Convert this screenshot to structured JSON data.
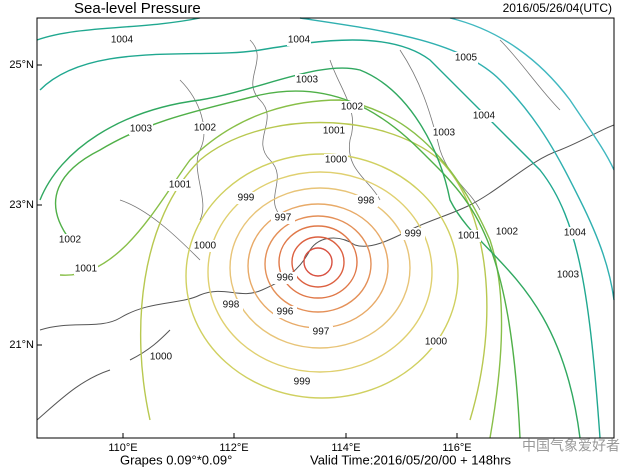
{
  "header": {
    "title": "Sea-level Pressure",
    "time": "2016/05/26/04(UTC)"
  },
  "axes": {
    "lat_labels": [
      "25°N",
      "23°N",
      "21°N"
    ],
    "lon_labels": [
      "110°E",
      "112°E",
      "114°E",
      "116°E"
    ]
  },
  "contour_labels": [
    "1004",
    "1004",
    "1005",
    "1004",
    "1003",
    "1002",
    "1003",
    "1002",
    "1001",
    "1003",
    "1000",
    "1001",
    "999",
    "998",
    "997",
    "999",
    "1001",
    "1002",
    "1004",
    "1002",
    "1000",
    "1001",
    "1003",
    "996",
    "998",
    "996",
    "997",
    "1000",
    "1000",
    "999"
  ],
  "footer": {
    "model": "Grapes 0.09°*0.09°",
    "valid_time": "Valid Time:2016/05/20/00 + 148hrs"
  },
  "watermark": "中国气象爱好者"
}
